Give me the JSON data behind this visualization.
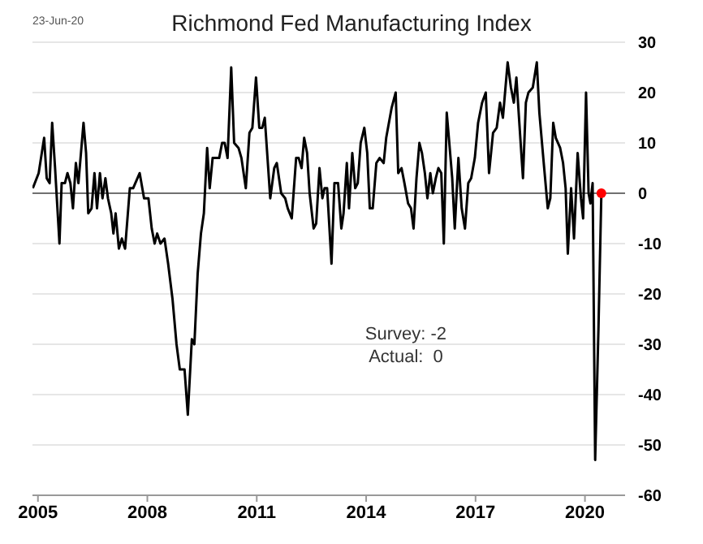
{
  "chart_data": {
    "type": "line",
    "title": "Richmond Fed Manufacturing Index",
    "annotations": [
      "23-Jun-20",
      "Survey: -2",
      "Actual:  0"
    ],
    "xlim": [
      2004.85,
      2021.1
    ],
    "xticks": [
      2005,
      2008,
      2011,
      2014,
      2017,
      2020
    ],
    "ylim": [
      -60,
      30
    ],
    "yticks": [
      -60,
      -50,
      -40,
      -30,
      -20,
      -10,
      0,
      10,
      20,
      30
    ],
    "grid": "y",
    "line_style": "solid",
    "ref_lines": [
      {
        "axis": "y",
        "value": 0,
        "color": "#707070"
      }
    ],
    "series": [
      {
        "marker": "none",
        "color": "#000000",
        "x": [
          2004.86,
          2005.02,
          2005.17,
          2005.24,
          2005.32,
          2005.39,
          2005.47,
          2005.59,
          2005.65,
          2005.74,
          2005.81,
          2005.89,
          2005.96,
          2006.04,
          2006.11,
          2006.25,
          2006.32,
          2006.38,
          2006.47,
          2006.55,
          2006.62,
          2006.7,
          2006.77,
          2006.85,
          2006.92,
          2007.01,
          2007.07,
          2007.13,
          2007.22,
          2007.3,
          2007.39,
          2007.52,
          2007.61,
          2007.79,
          2007.91,
          2008.03,
          2008.12,
          2008.2,
          2008.27,
          2008.36,
          2008.47,
          2008.57,
          2008.69,
          2008.8,
          2008.89,
          2009.02,
          2009.11,
          2009.22,
          2009.29,
          2009.38,
          2009.47,
          2009.55,
          2009.64,
          2009.71,
          2009.79,
          2009.89,
          2009.97,
          2010.05,
          2010.12,
          2010.2,
          2010.3,
          2010.38,
          2010.5,
          2010.58,
          2010.7,
          2010.8,
          2010.88,
          2010.98,
          2011.07,
          2011.15,
          2011.22,
          2011.37,
          2011.48,
          2011.55,
          2011.67,
          2011.78,
          2011.85,
          2011.96,
          2012.08,
          2012.15,
          2012.23,
          2012.3,
          2012.38,
          2012.45,
          2012.56,
          2012.63,
          2012.72,
          2012.8,
          2012.86,
          2012.93,
          2013.05,
          2013.13,
          2013.23,
          2013.32,
          2013.38,
          2013.47,
          2013.53,
          2013.62,
          2013.7,
          2013.77,
          2013.85,
          2013.95,
          2014.03,
          2014.1,
          2014.18,
          2014.28,
          2014.37,
          2014.48,
          2014.55,
          2014.7,
          2014.81,
          2014.88,
          2014.97,
          2015.05,
          2015.15,
          2015.23,
          2015.3,
          2015.38,
          2015.46,
          2015.53,
          2015.61,
          2015.68,
          2015.76,
          2015.83,
          2015.91,
          2015.98,
          2016.06,
          2016.13,
          2016.21,
          2016.28,
          2016.36,
          2016.43,
          2016.53,
          2016.62,
          2016.71,
          2016.8,
          2016.88,
          2016.98,
          2017.07,
          2017.18,
          2017.28,
          2017.37,
          2017.48,
          2017.58,
          2017.67,
          2017.75,
          2017.88,
          2017.97,
          2018.05,
          2018.12,
          2018.2,
          2018.3,
          2018.38,
          2018.45,
          2018.57,
          2018.68,
          2018.75,
          2018.87,
          2018.98,
          2019.05,
          2019.13,
          2019.2,
          2019.32,
          2019.4,
          2019.47,
          2019.53,
          2019.62,
          2019.7,
          2019.8,
          2019.89,
          2019.95,
          2020.03,
          2020.1,
          2020.15,
          2020.21,
          2020.28,
          2020.37,
          2020.45
        ],
        "values": [
          1,
          4,
          11,
          3,
          2,
          14,
          5,
          -10,
          2,
          2,
          4,
          2,
          -3,
          6,
          2,
          14,
          8,
          -4,
          -3,
          4,
          -3,
          4,
          -1,
          3,
          -1,
          -4,
          -8,
          -4,
          -11,
          -9,
          -11,
          1,
          1,
          4,
          -1,
          -1,
          -7,
          -10,
          -8,
          -10,
          -9,
          -14,
          -21,
          -30,
          -35,
          -35,
          -44,
          -29,
          -30,
          -16,
          -8,
          -4,
          9,
          1,
          7,
          7,
          7,
          10,
          10,
          7,
          25,
          10,
          9,
          7,
          1,
          12,
          13,
          23,
          13,
          13,
          15,
          -1,
          5,
          6,
          0,
          -1,
          -3,
          -5,
          7,
          7,
          5,
          11,
          8,
          0,
          -7,
          -6,
          5,
          -1,
          1,
          1,
          -14,
          2,
          2,
          -7,
          -4,
          6,
          -3,
          8,
          1,
          2,
          10,
          13,
          8,
          -3,
          -3,
          6,
          7,
          6,
          11,
          17,
          20,
          4,
          5,
          2,
          -2,
          -3,
          -7,
          3,
          10,
          8,
          4,
          -1,
          4,
          0,
          3,
          5,
          4,
          -10,
          16,
          10,
          3,
          -7,
          7,
          -3,
          -7,
          2,
          3,
          7,
          14,
          18,
          20,
          4,
          12,
          13,
          18,
          15,
          26,
          21,
          18,
          23,
          14,
          3,
          18,
          20,
          21,
          26,
          16,
          6,
          -3,
          -1,
          14,
          11,
          9,
          6,
          1,
          -12,
          1,
          -9,
          8,
          -1,
          -5,
          20,
          0,
          -2,
          2,
          -53,
          -27,
          0
        ]
      },
      {
        "type": "scatter",
        "marker": "circle",
        "color": "#ff0000",
        "x": [
          2020.45
        ],
        "values": [
          0
        ]
      }
    ]
  }
}
